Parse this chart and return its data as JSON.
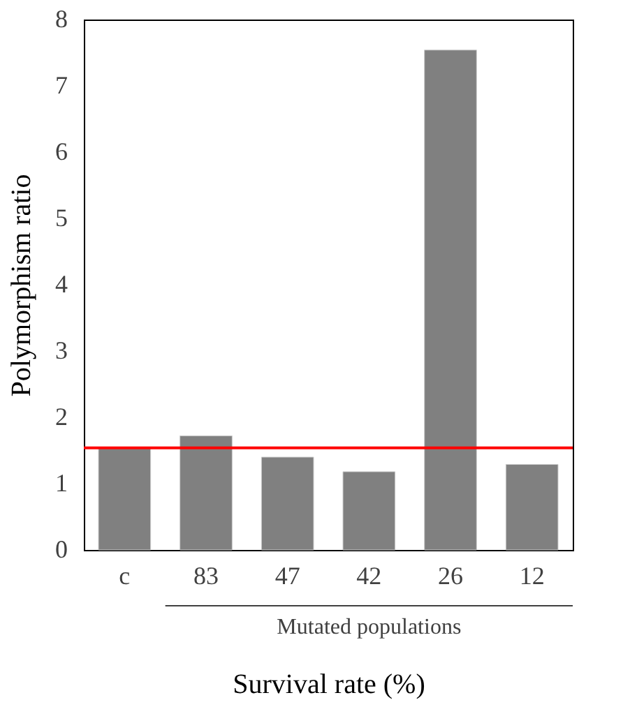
{
  "chart_data": {
    "type": "bar",
    "categories": [
      "c",
      "83",
      "47",
      "42",
      "26",
      "12"
    ],
    "values": [
      1.53,
      1.72,
      1.4,
      1.18,
      7.54,
      1.29
    ],
    "color": "#808080",
    "xlabel": "Survival rate (%)",
    "ylabel": "Polymorphism ratio",
    "ylim": [
      0,
      8
    ],
    "yticks": [
      0,
      1,
      2,
      3,
      4,
      5,
      6,
      7,
      8
    ],
    "ref_lines": [
      {
        "axis": "y",
        "value": 1.54,
        "color": "#ff0000"
      }
    ],
    "annotations": [
      "Mutated populations"
    ],
    "grid": false
  }
}
